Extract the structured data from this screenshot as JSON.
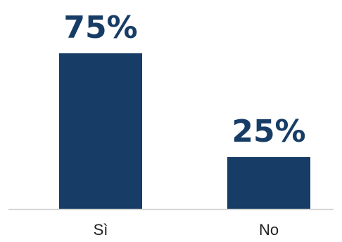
{
  "chart_data": {
    "type": "bar",
    "categories": [
      "Sì",
      "No"
    ],
    "values": [
      75,
      25
    ],
    "value_labels": [
      "75%",
      "25%"
    ],
    "title": "",
    "xlabel": "",
    "ylabel": "",
    "ylim": [
      0,
      75
    ],
    "grid": false,
    "colors": {
      "bar": "#173c66",
      "label": "#173c66",
      "axis": "#d0d0d0"
    }
  }
}
